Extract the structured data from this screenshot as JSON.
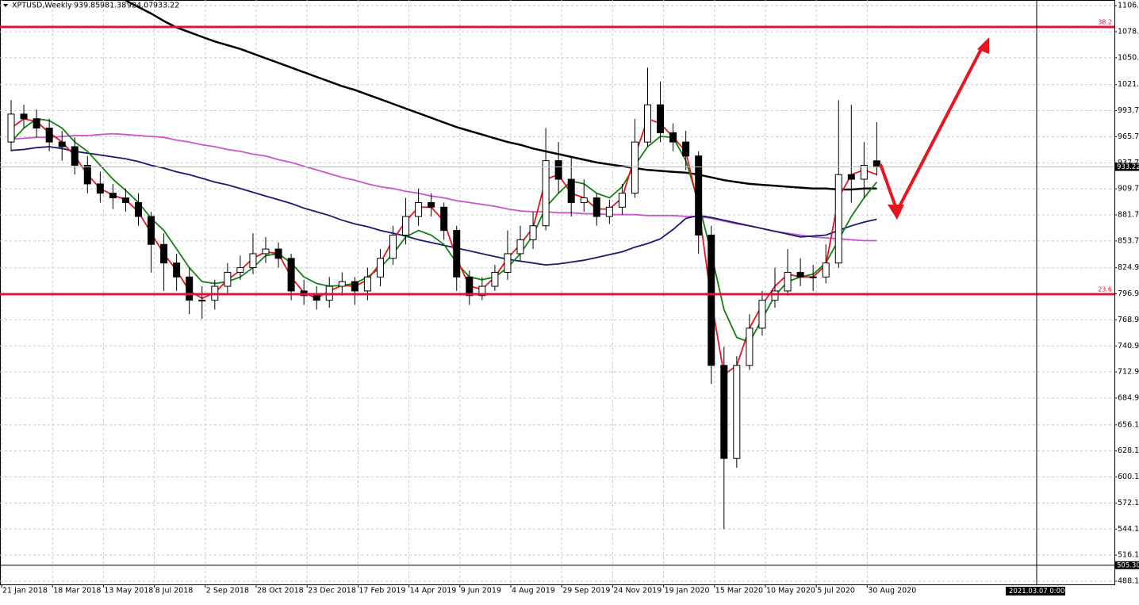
{
  "chart_data": {
    "type": "candlestick",
    "title": "XPTUSD,Weekly",
    "categories": [
      "21 Jan 2018",
      null,
      null,
      null,
      "18 Mar 2018",
      null,
      null,
      null,
      "13 May 2018",
      null,
      null,
      null,
      "8 Jul 2018",
      null,
      null,
      null,
      "2 Sep 2018",
      null,
      null,
      null,
      "28 Oct 2018",
      null,
      null,
      null,
      "23 Dec 2018",
      null,
      null,
      null,
      "17 Feb 2019",
      null,
      null,
      null,
      "14 Apr 2019",
      null,
      null,
      null,
      "9 Jun 2019",
      null,
      null,
      null,
      "4 Aug 2019",
      null,
      null,
      null,
      "29 Sep 2019",
      null,
      null,
      null,
      "24 Nov 2019",
      null,
      null,
      null,
      "19 Jan 2020",
      null,
      null,
      null,
      "15 Mar 2020",
      null,
      null,
      null,
      "10 May 2020",
      null,
      null,
      null,
      "5 Jul 2020",
      null,
      null,
      null,
      "30 Aug 2020"
    ],
    "open": [
      960,
      990,
      985,
      975,
      960,
      955,
      935,
      915,
      905,
      900,
      895,
      880,
      850,
      830,
      815,
      790,
      790,
      805,
      820,
      825,
      840,
      845,
      835,
      800,
      795,
      790,
      805,
      810,
      800,
      815,
      835,
      860,
      880,
      895,
      890,
      865,
      815,
      795,
      805,
      820,
      840,
      855,
      870,
      940,
      920,
      895,
      900,
      880,
      890,
      905,
      960,
      1000,
      970,
      960,
      945,
      860,
      720,
      620,
      720,
      760,
      790,
      800,
      820,
      815,
      815,
      830,
      925,
      920,
      939.85
    ],
    "high": [
      1005,
      1000,
      995,
      985,
      972,
      965,
      945,
      928,
      915,
      910,
      905,
      885,
      862,
      840,
      825,
      805,
      812,
      830,
      838,
      862,
      858,
      852,
      840,
      812,
      805,
      815,
      820,
      815,
      825,
      845,
      870,
      900,
      910,
      905,
      895,
      870,
      822,
      815,
      828,
      865,
      870,
      885,
      975,
      960,
      945,
      920,
      905,
      898,
      915,
      985,
      1040,
      1025,
      980,
      972,
      950,
      870,
      740,
      730,
      775,
      800,
      825,
      845,
      835,
      828,
      850,
      1005,
      1000,
      960,
      981.38
    ],
    "low": [
      950,
      975,
      965,
      950,
      940,
      925,
      905,
      895,
      888,
      885,
      870,
      820,
      800,
      800,
      775,
      770,
      780,
      798,
      812,
      818,
      830,
      825,
      790,
      785,
      780,
      782,
      795,
      785,
      790,
      805,
      828,
      850,
      870,
      880,
      855,
      800,
      785,
      790,
      800,
      812,
      832,
      845,
      865,
      905,
      880,
      885,
      870,
      872,
      882,
      900,
      955,
      960,
      950,
      930,
      840,
      700,
      544.1,
      610,
      715,
      752,
      782,
      795,
      805,
      800,
      808,
      825,
      895,
      900,
      924.07
    ],
    "close": [
      990,
      985,
      975,
      960,
      955,
      935,
      915,
      905,
      900,
      895,
      880,
      850,
      830,
      815,
      790,
      790,
      805,
      820,
      825,
      840,
      845,
      835,
      800,
      795,
      790,
      805,
      810,
      800,
      815,
      835,
      860,
      880,
      895,
      890,
      865,
      815,
      795,
      805,
      820,
      840,
      855,
      870,
      940,
      920,
      895,
      900,
      880,
      890,
      905,
      960,
      1000,
      970,
      960,
      945,
      860,
      720,
      620,
      720,
      760,
      790,
      800,
      820,
      815,
      815,
      830,
      925,
      920,
      935,
      933.22
    ],
    "up_color": "#ffffff",
    "down_color": "#000000",
    "series": [
      {
        "color": "#cc55cc",
        "values": [
          963,
          964,
          965,
          965,
          966,
          967,
          967,
          968,
          969,
          968,
          967,
          966,
          965,
          962,
          960,
          957,
          955,
          952,
          950,
          947,
          945,
          941,
          938,
          934,
          930,
          926,
          922,
          919,
          915,
          912,
          910,
          907,
          905,
          902,
          900,
          897,
          895,
          893,
          891,
          888,
          886,
          885,
          885,
          884,
          884,
          883,
          883,
          882,
          882,
          882,
          881,
          881,
          881,
          880,
          880,
          878,
          875,
          872,
          870,
          867,
          864,
          862,
          860,
          858,
          857,
          856,
          855,
          854,
          854
        ]
      },
      {
        "color": "#191970",
        "values": [
          951,
          952,
          954,
          955,
          953,
          950,
          948,
          946,
          944,
          942,
          939,
          935,
          932,
          928,
          925,
          921,
          917,
          914,
          910,
          906,
          902,
          898,
          894,
          889,
          885,
          881,
          876,
          872,
          869,
          865,
          862,
          859,
          855,
          852,
          849,
          846,
          843,
          840,
          837,
          834,
          832,
          830,
          828,
          829,
          831,
          833,
          836,
          839,
          842,
          847,
          851,
          856,
          866,
          878,
          881,
          879,
          876,
          873,
          870,
          867,
          864,
          861,
          858,
          859,
          860,
          865,
          870,
          874,
          877
        ]
      },
      {
        "color": "#000000",
        "values": [
          null,
          null,
          null,
          null,
          null,
          null,
          null,
          null,
          null,
          1112,
          1105,
          1098,
          1090,
          1083,
          1078,
          1073,
          1068,
          1064,
          1060,
          1055,
          1050,
          1045,
          1040,
          1035,
          1030,
          1025,
          1020,
          1016,
          1011,
          1006,
          1001,
          996,
          991,
          986,
          981,
          976,
          972,
          968,
          964,
          960,
          957,
          953,
          950,
          947,
          944,
          941,
          938,
          936,
          934,
          932,
          930,
          929,
          928,
          927,
          925,
          922,
          919,
          917,
          915,
          914,
          913,
          912,
          911,
          910,
          910,
          909,
          909,
          910,
          910
        ]
      },
      {
        "color": "#138013",
        "values": [
          960,
          975,
          985,
          983,
          975,
          960,
          950,
          935,
          920,
          908,
          895,
          878,
          865,
          845,
          825,
          810,
          808,
          810,
          815,
          825,
          838,
          840,
          830,
          815,
          808,
          805,
          806,
          808,
          815,
          825,
          840,
          858,
          865,
          860,
          850,
          830,
          815,
          812,
          815,
          825,
          840,
          860,
          890,
          905,
          918,
          915,
          905,
          900,
          912,
          935,
          955,
          966,
          965,
          940,
          895,
          840,
          780,
          750,
          745,
          770,
          795,
          810,
          815,
          818,
          830,
          855,
          880,
          900,
          917
        ]
      },
      {
        "color": "#e8141e",
        "values": [
          975,
          985,
          982,
          970,
          960,
          945,
          925,
          910,
          903,
          898,
          885,
          862,
          840,
          822,
          800,
          792,
          798,
          812,
          822,
          835,
          842,
          840,
          815,
          798,
          792,
          800,
          806,
          805,
          812,
          830,
          855,
          875,
          890,
          890,
          875,
          835,
          805,
          802,
          815,
          835,
          850,
          868,
          920,
          925,
          905,
          900,
          888,
          888,
          900,
          945,
          985,
          980,
          965,
          950,
          890,
          790,
          710,
          720,
          760,
          785,
          805,
          818,
          815,
          815,
          828,
          900,
          925,
          930,
          925
        ]
      }
    ],
    "levels": [
      {
        "value": 1083.6,
        "label": "38.2"
      },
      {
        "value": 796.5,
        "label": "23.6"
      }
    ],
    "level_color": "#dc143c",
    "bottom_line": {
      "value": 505.3,
      "label": "505.30"
    },
    "cursor_date": "2021.03.07 0:00",
    "ylim": [
      484.7,
      1112.6
    ],
    "yticks": [
      {
        "value": 1106.5,
        "label": "1106.50"
      },
      {
        "value": 1078.5,
        "label": "1078.50"
      },
      {
        "value": 1050.5,
        "label": "1050.50"
      },
      {
        "value": 1021.7,
        "label": "1021.70"
      },
      {
        "value": 993.7,
        "label": "993.70"
      },
      {
        "value": 965.7,
        "label": "965.70"
      },
      {
        "value": 937.7,
        "label": "937.70"
      },
      {
        "value": 909.7,
        "label": "909.70"
      },
      {
        "value": 881.7,
        "label": "881.70"
      },
      {
        "value": 853.7,
        "label": "853.70"
      },
      {
        "value": 824.9,
        "label": "824.90"
      },
      {
        "value": 796.9,
        "label": "796.90"
      },
      {
        "value": 768.9,
        "label": "768.90"
      },
      {
        "value": 740.9,
        "label": "740.90"
      },
      {
        "value": 712.9,
        "label": "712.90"
      },
      {
        "value": 684.9,
        "label": "684.90"
      },
      {
        "value": 656.1,
        "label": "656.10"
      },
      {
        "value": 628.1,
        "label": "628.10"
      },
      {
        "value": 600.1,
        "label": "600.10"
      },
      {
        "value": 572.1,
        "label": "572.10"
      },
      {
        "value": 544.1,
        "label": "544.10"
      },
      {
        "value": 516.1,
        "label": "516.10"
      },
      {
        "value": 488.1,
        "label": "488.10"
      }
    ],
    "grid": true
  }
}
